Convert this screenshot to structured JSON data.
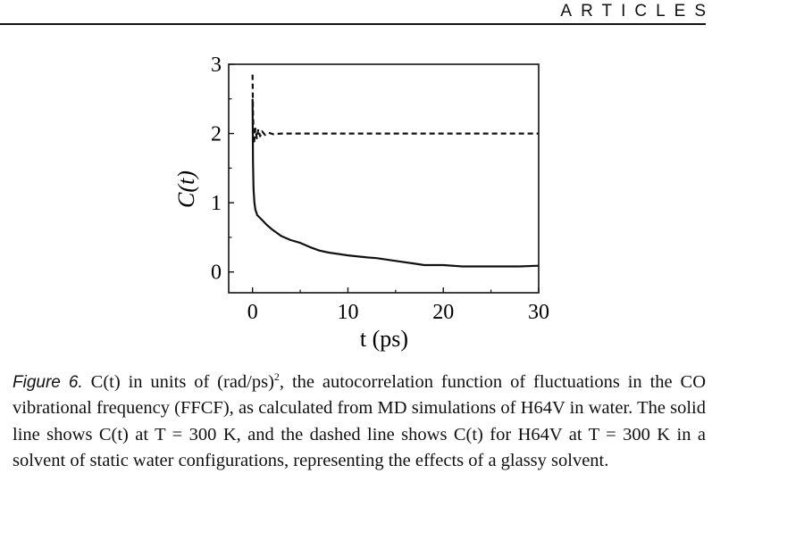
{
  "header": {
    "section_label": "ARTICLES"
  },
  "caption": {
    "figure_label": "Figure 6.",
    "text_before_sup": " C(t) in units of (rad/ps)",
    "superscript": "2",
    "text_after_sup": ", the autocorrelation function of fluctuations in the CO vibrational frequency (FFCF), as calculated from MD simulations of H64V in water. The solid line shows C(t) at T = 300 K, and the dashed line shows C(t) for H64V at T = 300 K in a solvent of static water configurations, representing the effects of a glassy solvent."
  },
  "chart_data": {
    "type": "line",
    "title": "",
    "xlabel": "t (ps)",
    "ylabel": "C(t)",
    "xlim": [
      -2.5,
      30
    ],
    "ylim": [
      -0.3,
      3
    ],
    "xticks": [
      0,
      10,
      20,
      30
    ],
    "yticks": [
      0,
      1,
      2,
      3
    ],
    "grid": false,
    "series": [
      {
        "style": "solid",
        "x": [
          0,
          0.05,
          0.1,
          0.2,
          0.3,
          0.5,
          1,
          1.5,
          2,
          3,
          4,
          5,
          6,
          7,
          8,
          10,
          12,
          13,
          15,
          17,
          18,
          20,
          22,
          25,
          28,
          30
        ],
        "y": [
          2.5,
          1.6,
          1.2,
          1.0,
          0.9,
          0.82,
          0.75,
          0.68,
          0.62,
          0.52,
          0.46,
          0.42,
          0.36,
          0.31,
          0.28,
          0.24,
          0.21,
          0.2,
          0.16,
          0.12,
          0.1,
          0.1,
          0.08,
          0.08,
          0.08,
          0.09
        ]
      },
      {
        "style": "dashed",
        "x": [
          0,
          0.05,
          0.15,
          0.3,
          0.45,
          0.6,
          0.8,
          1,
          1.3,
          1.7,
          2.2,
          3,
          30
        ],
        "y": [
          2.85,
          2.3,
          1.85,
          2.07,
          1.93,
          2.06,
          1.96,
          2.03,
          1.98,
          2.01,
          1.99,
          2.0,
          2.0
        ]
      }
    ]
  }
}
